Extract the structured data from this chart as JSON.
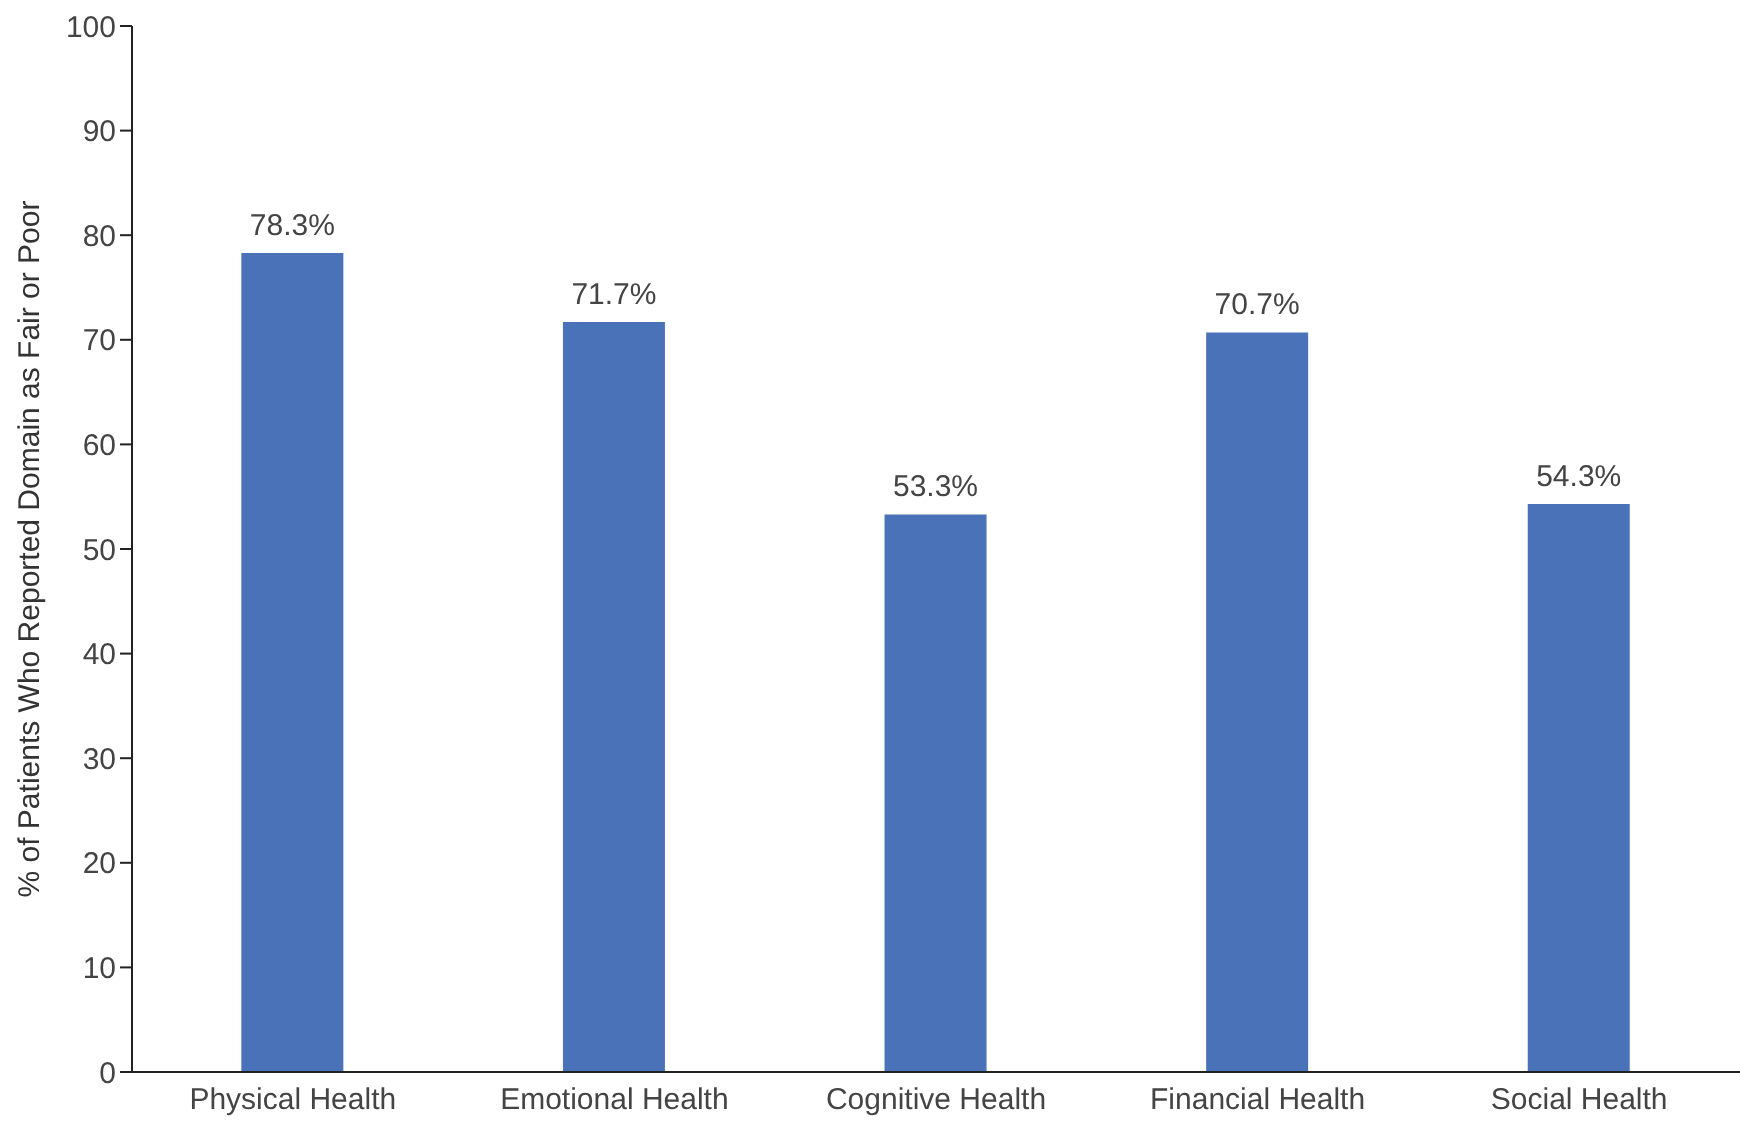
{
  "chart_data": {
    "type": "bar",
    "ylabel": "% of Patients Who Reported Domain as Fair or Poor",
    "categories": [
      "Physical Health",
      "Emotional Health",
      "Cognitive Health",
      "Financial Health",
      "Social Health"
    ],
    "values": [
      78.3,
      71.7,
      53.3,
      70.7,
      54.3
    ],
    "value_labels": [
      "78.3%",
      "71.7%",
      "53.3%",
      "70.7%",
      "54.3%"
    ],
    "color": "#4a72b8",
    "ylim": [
      0,
      100
    ],
    "yticks": [
      0,
      10,
      20,
      30,
      40,
      50,
      60,
      70,
      80,
      90,
      100
    ],
    "grid": false,
    "legend": false
  }
}
